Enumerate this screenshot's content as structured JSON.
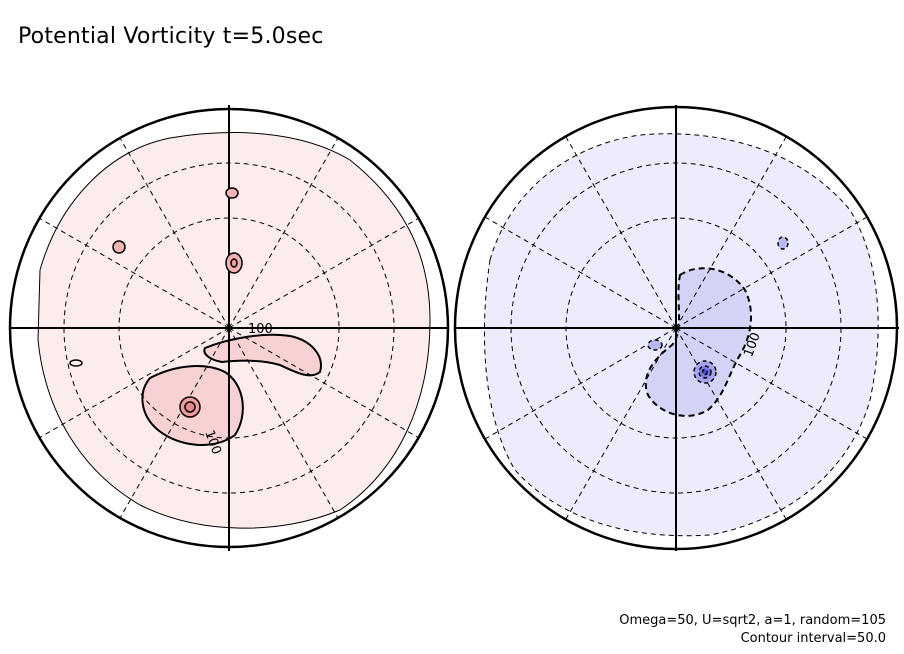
{
  "title": "Potential Vorticity t=5.0sec",
  "footer": {
    "parameters": "Omega=50, U=sqrt2, a=1, random=105",
    "contour_interval": "Contour interval=50.0"
  },
  "hemispheres": [
    {
      "fill_color": "#fdecec",
      "core_color": "#f7c8c8",
      "peak_color": "#f19d9d",
      "contour_labels": [
        "100",
        "100"
      ]
    },
    {
      "fill_color": "#ececfd",
      "core_color": "#c9c9f6",
      "peak_color": "#7d7de8",
      "contour_labels": [
        "100"
      ]
    }
  ]
}
